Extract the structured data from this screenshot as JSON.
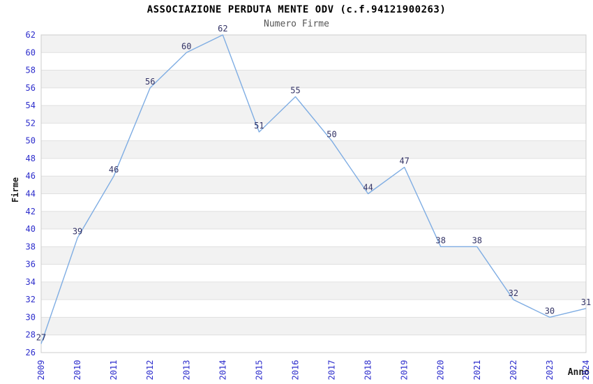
{
  "header": {
    "title": "ASSOCIAZIONE PERDUTA MENTE ODV (c.f.94121900263)",
    "subtitle": "Numero Firme"
  },
  "chart_data": {
    "type": "line",
    "title": "ASSOCIAZIONE PERDUTA MENTE ODV (c.f.94121900263)",
    "subtitle": "Numero Firme",
    "xlabel": "Anno",
    "ylabel": "Firme",
    "x": [
      2009,
      2010,
      2011,
      2012,
      2013,
      2014,
      2015,
      2016,
      2017,
      2018,
      2019,
      2020,
      2021,
      2022,
      2023,
      2024
    ],
    "series": [
      {
        "name": "Numero Firme",
        "values": [
          27,
          39,
          46,
          56,
          60,
          62,
          51,
          55,
          50,
          44,
          47,
          38,
          38,
          32,
          30,
          31
        ]
      }
    ],
    "ylim": [
      26,
      62
    ],
    "ytick_step": 2,
    "grid": true,
    "alternating_bands": true,
    "point_labels_visible": true,
    "legend_position": "none"
  },
  "colors": {
    "background": "#ffffff",
    "title": "#000000",
    "subtitle": "#555555",
    "axis_title": "#1a1a1a",
    "tick_label": "#2d2dcc",
    "data_label": "#333366",
    "line": "#7fade3",
    "band": "#f2f2f2",
    "gridline": "#e0e0e0",
    "plot_border": "#cccccc"
  }
}
